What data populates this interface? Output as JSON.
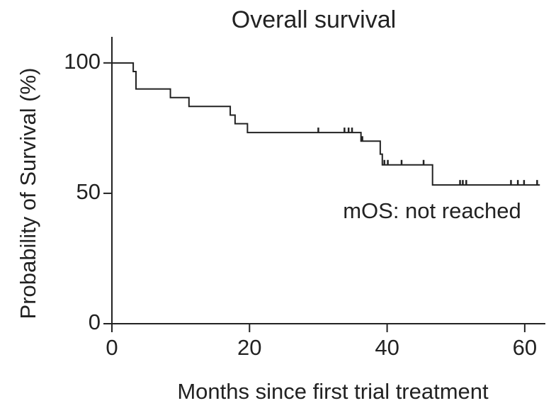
{
  "chart_data": {
    "type": "step",
    "title": "Overall survival",
    "x_label": "Months since first trial treatment",
    "y_label": "Probability of Survival (%)",
    "annotation": "mOS: not reached",
    "color": "#222222",
    "xlim": [
      0,
      63
    ],
    "ylim": [
      0,
      110
    ],
    "xticks": [
      0,
      20,
      40,
      60
    ],
    "yticks": [
      0,
      50,
      100
    ],
    "series": [
      {
        "name": "Overall survival",
        "color": "#222222",
        "x": [
          0,
          3.1,
          3.5,
          8.5,
          11.2,
          17.2,
          17.9,
          19.7,
          36.2,
          39.0,
          39.3,
          46.6,
          62.2
        ],
        "values": [
          100,
          96.7,
          90,
          86.7,
          83.3,
          80,
          76.7,
          73.3,
          70,
          65,
          60.9,
          53.2,
          53.2
        ]
      }
    ],
    "censored": {
      "x": [
        30.0,
        33.8,
        34.4,
        34.9,
        36.4,
        39.6,
        40.1,
        42.1,
        45.3,
        50.6,
        51.0,
        51.5,
        58.0,
        59.0,
        59.9,
        61.8
      ],
      "values": [
        73.3,
        73.3,
        73.3,
        73.3,
        70,
        60.9,
        60.9,
        60.9,
        60.9,
        53.2,
        53.2,
        53.2,
        53.2,
        53.2,
        53.2,
        53.2
      ]
    }
  }
}
